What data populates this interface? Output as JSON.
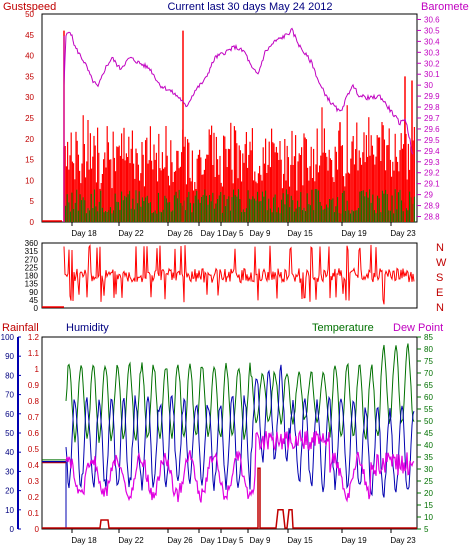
{
  "title": "Current last 30 days May 24 2012",
  "colors": {
    "background": "#ffffff",
    "frame": "#000000",
    "gust": "#ff0000",
    "wind": "#008000",
    "barometer": "#c000c0",
    "direction": "#ff0000",
    "rain": "#c00000",
    "humidity": "#0000b0",
    "temperature": "#007000",
    "dewpoint": "#e000e0",
    "title": "#000080"
  },
  "x_ticks": [
    "Day 18",
    "Day 22",
    "Day 26",
    "Day 1",
    "Day 5",
    "Day 9",
    "Day 15",
    "Day 19",
    "Day 23"
  ],
  "chart_data": [
    {
      "type": "line",
      "title": "Current last 30 days May 24 2012",
      "legend": {
        "left": "Gustspeed",
        "right": "Barometer"
      },
      "y_left": {
        "label": "Gustspeed",
        "ticks": [
          0,
          5,
          10,
          15,
          20,
          25,
          30,
          35,
          40,
          45,
          50
        ],
        "ylim": [
          0,
          50
        ]
      },
      "y_right": {
        "label": "Barometer",
        "ticks": [
          "28.8",
          "28.9",
          "29",
          "29.1",
          "29.2",
          "29.3",
          "29.4",
          "29.5",
          "29.6",
          "29.7",
          "29.8",
          "29.9",
          "30",
          "30.1",
          "30.2",
          "30.3",
          "30.4",
          "30.5",
          "30.6"
        ],
        "ylim": [
          28.75,
          30.65
        ]
      },
      "categories": [
        "Day 18",
        "Day 22",
        "Day 26",
        "Day 1",
        "Day 5",
        "Day 9",
        "Day 15",
        "Day 19",
        "Day 23"
      ],
      "series": [
        {
          "name": "Gustspeed",
          "values": [
            14,
            18,
            20,
            19,
            17,
            16,
            18,
            20,
            22
          ]
        },
        {
          "name": "Barometer",
          "values": [
            30.25,
            30.15,
            30.0,
            30.2,
            30.3,
            30.15,
            30.05,
            29.9,
            29.7
          ]
        }
      ]
    },
    {
      "type": "line",
      "y_left": {
        "ticks": [
          0,
          45,
          90,
          135,
          180,
          225,
          270,
          315,
          360
        ],
        "ylim": [
          0,
          360
        ]
      },
      "y_right": {
        "ticks": [
          "N",
          "W",
          "S",
          "E",
          "N"
        ]
      },
      "categories": [
        "Day 18",
        "Day 22",
        "Day 26",
        "Day 1",
        "Day 5",
        "Day 9",
        "Day 15",
        "Day 19",
        "Day 23"
      ],
      "series": [
        {
          "name": "Wind direction",
          "values": [
            230,
            200,
            190,
            185,
            200,
            180,
            190,
            195,
            200
          ]
        }
      ]
    },
    {
      "type": "line",
      "legend": {
        "rain": "Rainfall",
        "humidity": "Humidity",
        "temperature": "Temperature",
        "dewpoint": "Dew Point"
      },
      "y_left": {
        "ticks": [
          0,
          10,
          20,
          30,
          40,
          50,
          60,
          70,
          80,
          90,
          100
        ],
        "ylim": [
          0,
          100
        ]
      },
      "y_rain": {
        "ticks": [
          "0",
          "0.1",
          "0.2",
          "0.3",
          "0.4",
          "0.5",
          "0.6",
          "0.7",
          "0.8",
          "0.9",
          "1",
          "1.1",
          "1.2"
        ],
        "ylim": [
          0,
          1.2
        ]
      },
      "y_right": {
        "ticks": [
          5,
          10,
          15,
          20,
          25,
          30,
          35,
          40,
          45,
          50,
          55,
          60,
          65,
          70,
          75,
          80,
          85
        ],
        "ylim": [
          5,
          85
        ]
      },
      "categories": [
        "Day 18",
        "Day 22",
        "Day 26",
        "Day 1",
        "Day 5",
        "Day 9",
        "Day 15",
        "Day 19",
        "Day 23"
      ],
      "series": [
        {
          "name": "Rainfall",
          "values": [
            0.0,
            0.05,
            0.0,
            0.0,
            0.0,
            0.35,
            0.15,
            0.0,
            0.0
          ]
        },
        {
          "name": "Humidity",
          "values": [
            55,
            50,
            52,
            48,
            35,
            60,
            55,
            45,
            40
          ]
        },
        {
          "name": "Temperature",
          "values": [
            65,
            70,
            72,
            70,
            75,
            68,
            70,
            72,
            78
          ]
        },
        {
          "name": "Dew Point",
          "values": [
            40,
            42,
            45,
            40,
            35,
            45,
            40,
            38,
            35
          ]
        }
      ]
    }
  ]
}
